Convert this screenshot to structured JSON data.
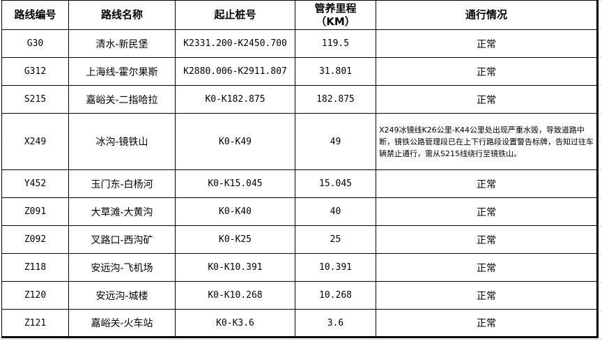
{
  "headers": [
    "路线编号",
    "路线名称",
    "起止桩号",
    "管养里程",
    "（KM）",
    "通行情况"
  ],
  "rows": [
    {
      "code": "G30",
      "name": "清水-新民堡",
      "stake": "K2331.200-K2450.700",
      "km": "119.5",
      "status": "正常"
    },
    {
      "code": "G312",
      "name": "上海线-霍尔果斯",
      "stake": "K2880.006-K2911.807",
      "km": "31.801",
      "status": "正常"
    },
    {
      "code": "S215",
      "name": "嘉峪关-二指哈拉",
      "stake": "K0-K182.875",
      "km": "182.875",
      "status": "正常"
    },
    {
      "code": "X249",
      "name": "冰沟-镜铁山",
      "stake": "K0-K49",
      "km": "49",
      "status": "X249冰镜线K26公里-K44公里处出现严重水毁，导致道路中断，镜铁公路管理段已在上下行路段设置警告标牌，告知过往车辆禁止通行，需从S215线绕行至镜铁山。"
    },
    {
      "code": "Y452",
      "name": "玉门东-白杨河",
      "stake": "K0-K15.045",
      "km": "15.045",
      "status": "正常"
    },
    {
      "code": "Z091",
      "name": "大草滩-大黄沟",
      "stake": "K0-K40",
      "km": "40",
      "status": "正常"
    },
    {
      "code": "Z092",
      "name": "叉路口-西沟矿",
      "stake": "K0-K25",
      "km": "25",
      "status": "正常"
    },
    {
      "code": "Z118",
      "name": "安远沟-飞机场",
      "stake": "K0-K10.391",
      "km": "10.391",
      "status": "正常"
    },
    {
      "code": "Z120",
      "name": "安远沟-城楼",
      "stake": "K0-K10.268",
      "km": "10.268",
      "status": "正常"
    },
    {
      "code": "Z121",
      "name": "嘉峪关-火车站",
      "stake": "K0-K3.6",
      "km": "3.6",
      "status": "正常"
    }
  ]
}
